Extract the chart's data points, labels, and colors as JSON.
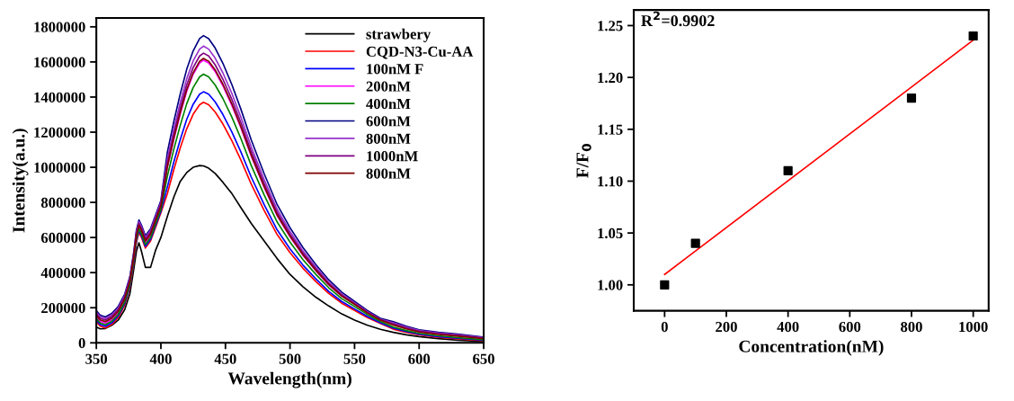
{
  "chart_data": [
    {
      "type": "line",
      "xlabel": "Wavelength(nm)",
      "ylabel": "Intensity(a.u.)",
      "legend": "top right",
      "grid": false,
      "marker": "none",
      "line_style": "solid",
      "xlim": [
        350,
        650
      ],
      "xticks": [
        350,
        400,
        450,
        500,
        550,
        600,
        650
      ],
      "ylim": [
        0,
        1850000
      ],
      "yticks": [
        0,
        200000,
        400000,
        600000,
        800000,
        1000000,
        1200000,
        1400000,
        1600000,
        1800000
      ],
      "x": [
        350,
        353,
        357,
        362,
        367,
        372,
        376,
        379,
        381,
        383,
        385,
        388,
        392,
        396,
        400,
        405,
        410,
        415,
        420,
        425,
        430,
        433,
        437,
        442,
        448,
        455,
        462,
        470,
        480,
        490,
        500,
        510,
        520,
        530,
        540,
        550,
        560,
        570,
        580,
        590,
        600,
        615,
        630,
        650
      ],
      "series": [
        {
          "name": "strawbery",
          "color": "#000000",
          "values": [
            90000,
            80000,
            82000,
            100000,
            130000,
            190000,
            280000,
            420000,
            520000,
            570000,
            520000,
            430000,
            430000,
            530000,
            600000,
            720000,
            830000,
            920000,
            970000,
            1000000,
            1010000,
            1008000,
            995000,
            965000,
            915000,
            850000,
            770000,
            680000,
            580000,
            480000,
            390000,
            320000,
            260000,
            210000,
            165000,
            130000,
            100000,
            77000,
            60000,
            46000,
            36000,
            24000,
            15000,
            7000
          ]
        },
        {
          "name": "CQD-N3-Cu-AA",
          "color": "#ff0000",
          "values": [
            120000,
            95000,
            85000,
            105000,
            145000,
            215000,
            315000,
            455000,
            570000,
            630000,
            600000,
            540000,
            580000,
            660000,
            740000,
            849000,
            986000,
            1110000,
            1219000,
            1302000,
            1356000,
            1370000,
            1356000,
            1315000,
            1247000,
            1151000,
            1041000,
            904000,
            754000,
            617000,
            514000,
            425000,
            349000,
            281000,
            226000,
            185000,
            144000,
            110000,
            78000,
            60000,
            46000,
            32000,
            22000,
            12000
          ]
        },
        {
          "name": "100nM F",
          "color": "#0000ff",
          "values": [
            129000,
            104000,
            94000,
            114000,
            154000,
            224000,
            324000,
            464000,
            580000,
            640000,
            610000,
            550000,
            590000,
            670000,
            750000,
            887000,
            1030000,
            1158000,
            1273000,
            1359000,
            1416000,
            1430000,
            1416000,
            1373000,
            1301000,
            1201000,
            1087000,
            944000,
            787000,
            644000,
            536000,
            443000,
            365000,
            293000,
            236000,
            193000,
            150000,
            114000,
            84000,
            65000,
            50000,
            36000,
            26000,
            15000
          ]
        },
        {
          "name": "200nM",
          "color": "#ff00ff",
          "values": [
            147000,
            122000,
            112000,
            132000,
            172000,
            242000,
            342000,
            482000,
            600000,
            660000,
            630000,
            570000,
            610000,
            690000,
            770000,
            998000,
            1159000,
            1304000,
            1433000,
            1530000,
            1594000,
            1610000,
            1594000,
            1546000,
            1465000,
            1352000,
            1224000,
            1063000,
            886000,
            725000,
            604000,
            499000,
            411000,
            330000,
            266000,
            null,
            null,
            null,
            null,
            null,
            null,
            null,
            null,
            null
          ]
        },
        {
          "name": "400nM",
          "color": "#008000",
          "values": [
            138000,
            113000,
            103000,
            123000,
            163000,
            233000,
            333000,
            473000,
            590000,
            650000,
            620000,
            560000,
            600000,
            680000,
            760000,
            949000,
            1102000,
            1239000,
            1362000,
            1454000,
            1515000,
            1530000,
            1515000,
            1469000,
            1392000,
            1285000,
            1163000,
            1010000,
            842000,
            689000,
            574000,
            474000,
            390000,
            314000,
            252000,
            207000,
            161000,
            122000,
            90000,
            70000,
            54000,
            40000,
            30000,
            18000
          ]
        },
        {
          "name": "600nM",
          "color": "#000080",
          "values": [
            183000,
            158000,
            148000,
            168000,
            208000,
            278000,
            378000,
            518000,
            640000,
            700000,
            670000,
            610000,
            650000,
            730000,
            810000,
            1085000,
            1260000,
            1418000,
            1558000,
            1663000,
            1733000,
            1750000,
            1733000,
            1680000,
            1593000,
            1470000,
            1330000,
            1155000,
            963000,
            788000,
            656000,
            543000,
            446000,
            359000,
            289000,
            236000,
            184000,
            140000,
            120000,
            95000,
            74000,
            60000,
            50000,
            33000
          ]
        },
        {
          "name": "800nM",
          "color": "#9932cc",
          "values": [
            174000,
            149000,
            139000,
            159000,
            199000,
            269000,
            369000,
            509000,
            630000,
            690000,
            660000,
            600000,
            640000,
            720000,
            800000,
            1048000,
            1217000,
            1369000,
            1504000,
            1606000,
            1673000,
            1690000,
            1673000,
            1622000,
            1538000,
            1420000,
            1284000,
            1115000,
            930000,
            761000,
            634000,
            524000,
            431000,
            346000,
            279000,
            228000,
            177000,
            135000,
            114000,
            90000,
            70000,
            56000,
            46000,
            30000
          ]
        },
        {
          "name": "1000nM",
          "color": "#800080",
          "values": [
            165000,
            140000,
            130000,
            150000,
            190000,
            260000,
            360000,
            500000,
            620000,
            680000,
            650000,
            590000,
            630000,
            710000,
            790000,
            1023000,
            1188000,
            1337000,
            1469000,
            1568000,
            1634000,
            1650000,
            1634000,
            1584000,
            1502000,
            1386000,
            1254000,
            1089000,
            908000,
            743000,
            619000,
            512000,
            421000,
            338000,
            272000,
            223000,
            173000,
            132000,
            108000,
            85000,
            66000,
            52000,
            42000,
            27000
          ]
        },
        {
          "name": "800nM",
          "color": "#800000",
          "values": [
            156000,
            131000,
            121000,
            141000,
            181000,
            251000,
            351000,
            491000,
            610000,
            670000,
            640000,
            580000,
            620000,
            700000,
            780000,
            1004000,
            1166000,
            1312000,
            1442000,
            1539000,
            1604000,
            1620000,
            1604000,
            1555000,
            1474000,
            1361000,
            1231000,
            1069000,
            891000,
            729000,
            608000,
            502000,
            413000,
            332000,
            267000,
            219000,
            170000,
            130000,
            102000,
            80000,
            62000,
            48000,
            38000,
            24000
          ]
        }
      ]
    },
    {
      "type": "scatter",
      "xlabel": "Concentration(nM)",
      "ylabel": "F/F$_{0}$",
      "grid": false,
      "legend": false,
      "xlim": [
        -100,
        1050
      ],
      "xticks": [
        0,
        200,
        400,
        600,
        800,
        1000
      ],
      "ylim": [
        0.975,
        1.265
      ],
      "yticks": [
        {
          "value": 1.0,
          "label": "1.00"
        },
        1.05,
        {
          "value": 1.1,
          "label": "1.10"
        },
        1.15,
        {
          "value": 1.2,
          "label": "1.20"
        },
        1.25
      ],
      "annotations": [
        "R$^{2}$=0.9902"
      ],
      "series": [
        {
          "type": "scatter",
          "color": "#000000",
          "marker": "square",
          "x": [
            0,
            100,
            400,
            800,
            1000
          ],
          "values": [
            1.0,
            1.04,
            1.11,
            1.18,
            1.24
          ]
        },
        {
          "type": "line",
          "color": "#ff0000",
          "marker": "none",
          "x": [
            0,
            1000
          ],
          "values": [
            1.01,
            1.236
          ]
        }
      ]
    }
  ]
}
